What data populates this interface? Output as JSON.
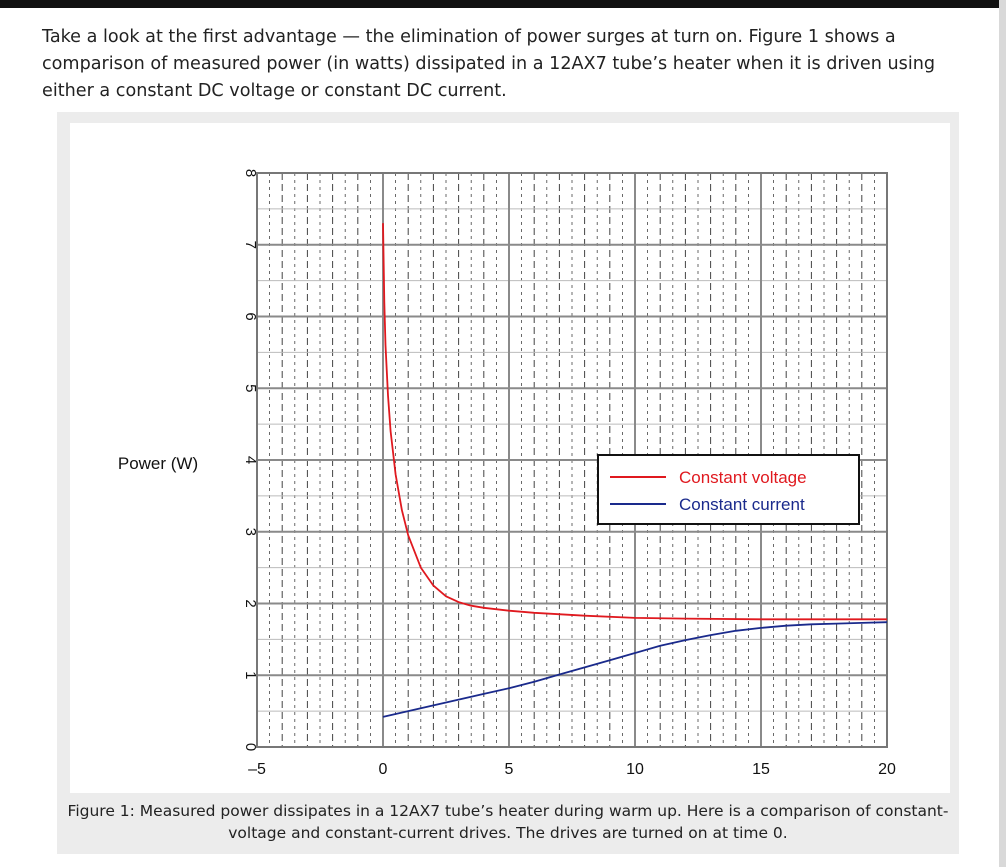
{
  "article": {
    "intro_text": "Take a look at the first advantage — the elimination of power surges at turn on. Figure 1 shows a comparison of measured power (in watts) dissipated in a 12AX7 tube’s heater when it is driven using either a constant DC voltage or constant DC current."
  },
  "figure": {
    "caption": "Figure 1: Measured power dissipates in a 12AX7 tube’s heater during warm up. Here is a comparison of constant-voltage and constant-current drives. The drives are turned on at time 0."
  },
  "chart_data": {
    "type": "line",
    "title": "",
    "xlabel": "",
    "ylabel": "Power (W)",
    "xlim": [
      -5,
      20
    ],
    "ylim": [
      0,
      8
    ],
    "x_ticks": [
      "-5",
      "0",
      "5",
      "10",
      "15",
      "20"
    ],
    "y_ticks": [
      "0",
      "1",
      "2",
      "3",
      "4",
      "5",
      "6",
      "7",
      "8"
    ],
    "grid": true,
    "legend_position": "center-right",
    "series": [
      {
        "name": "Constant voltage",
        "color": "#e0191f",
        "x": [
          0,
          0.05,
          0.1,
          0.2,
          0.3,
          0.5,
          0.75,
          1,
          1.5,
          2,
          2.5,
          3,
          3.5,
          4,
          5,
          6,
          8,
          10,
          12,
          15,
          18,
          20
        ],
        "y": [
          7.3,
          6.2,
          5.6,
          4.9,
          4.4,
          3.8,
          3.3,
          2.95,
          2.5,
          2.25,
          2.1,
          2.02,
          1.97,
          1.94,
          1.9,
          1.87,
          1.83,
          1.8,
          1.79,
          1.78,
          1.78,
          1.78
        ]
      },
      {
        "name": "Constant current",
        "color": "#1a2a8c",
        "x": [
          0,
          1,
          2,
          3,
          4,
          5,
          6,
          7,
          8,
          9,
          10,
          11,
          12,
          13,
          14,
          15,
          16,
          17,
          18,
          19,
          20
        ],
        "y": [
          0.42,
          0.5,
          0.58,
          0.66,
          0.74,
          0.82,
          0.91,
          1.01,
          1.11,
          1.21,
          1.31,
          1.41,
          1.49,
          1.56,
          1.62,
          1.66,
          1.69,
          1.71,
          1.72,
          1.73,
          1.74
        ]
      }
    ]
  }
}
